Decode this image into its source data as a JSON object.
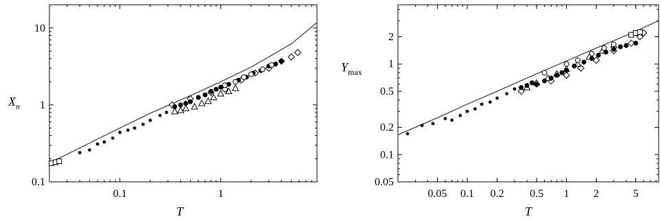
{
  "chart_data": [
    {
      "type": "scatter",
      "title": "",
      "xlabel": "T",
      "ylabel": "X",
      "ylabel_sub": "n",
      "xscale": "log",
      "yscale": "log",
      "xlim": [
        0.02,
        9
      ],
      "ylim": [
        0.1,
        20
      ],
      "xticks": [
        {
          "v": 0.1,
          "label": "0.1"
        },
        {
          "v": 1,
          "label": "1"
        }
      ],
      "yticks": [
        {
          "v": 0.1,
          "label": "0.1"
        },
        {
          "v": 1,
          "label": "1"
        },
        {
          "v": 10,
          "label": "10"
        }
      ],
      "grid": false,
      "curve": {
        "x": [
          0.02,
          0.05,
          0.1,
          0.2,
          0.5,
          1,
          2,
          5,
          9
        ],
        "y": [
          0.175,
          0.32,
          0.5,
          0.78,
          1.32,
          2.0,
          3.1,
          6.2,
          11.8
        ]
      },
      "series": [
        {
          "marker": "star",
          "x": [
            0.04,
            0.05,
            0.06,
            0.07,
            0.085,
            0.1,
            0.12,
            0.14,
            0.17,
            0.2,
            0.25,
            0.29
          ],
          "y": [
            0.24,
            0.26,
            0.31,
            0.33,
            0.37,
            0.44,
            0.47,
            0.5,
            0.56,
            0.63,
            0.73,
            0.8
          ]
        },
        {
          "marker": "open-square",
          "x": [
            0.021,
            0.023,
            0.025
          ],
          "y": [
            0.175,
            0.18,
            0.185
          ]
        },
        {
          "marker": "open-diamond",
          "x": [
            0.33,
            0.5,
            0.8,
            1.1,
            1.6,
            2.2,
            3.0,
            4.0,
            5.0,
            5.8
          ],
          "y": [
            1.0,
            1.2,
            1.45,
            1.6,
            2.1,
            2.6,
            3.0,
            3.7,
            4.2,
            4.8
          ]
        },
        {
          "marker": "open-triangle",
          "x": [
            0.35,
            0.4,
            0.45,
            0.55,
            0.65,
            0.75,
            0.85,
            1.0,
            1.2,
            1.4
          ],
          "y": [
            0.82,
            0.85,
            0.9,
            0.95,
            1.05,
            1.12,
            1.25,
            1.4,
            1.5,
            1.65
          ]
        },
        {
          "marker": "filled-circle",
          "x": [
            0.35,
            0.4,
            0.45,
            0.5,
            0.6,
            0.7,
            0.8,
            0.9,
            1.0,
            1.2,
            1.5,
            1.8,
            2.1,
            2.5,
            3.0,
            3.5,
            4.0
          ],
          "y": [
            0.95,
            1.0,
            1.05,
            1.1,
            1.25,
            1.35,
            1.5,
            1.6,
            1.7,
            1.85,
            2.1,
            2.3,
            2.6,
            2.8,
            3.2,
            3.4,
            3.7
          ]
        },
        {
          "marker": "open-circle",
          "x": [
            1.1,
            1.4,
            1.7,
            2.0,
            2.6,
            3.2
          ],
          "y": [
            1.8,
            2.0,
            2.3,
            2.5,
            2.9,
            3.3
          ]
        }
      ]
    },
    {
      "type": "scatter",
      "title": "",
      "xlabel": "T",
      "ylabel": "Y",
      "ylabel_sub": "max",
      "xscale": "log",
      "yscale": "log",
      "xlim": [
        0.02,
        8.5
      ],
      "ylim": [
        0.05,
        4.5
      ],
      "xticks": [
        {
          "v": 0.05,
          "label": "0.05"
        },
        {
          "v": 0.1,
          "label": "0.1"
        },
        {
          "v": 0.2,
          "label": "0.2"
        },
        {
          "v": 0.5,
          "label": "0.5"
        },
        {
          "v": 1,
          "label": "1"
        },
        {
          "v": 2,
          "label": "2"
        },
        {
          "v": 5,
          "label": "5"
        }
      ],
      "yticks": [
        {
          "v": 0.05,
          "label": "0.05"
        },
        {
          "v": 0.1,
          "label": "0.1"
        },
        {
          "v": 0.2,
          "label": "0.2"
        },
        {
          "v": 0.5,
          "label": "0.5"
        },
        {
          "v": 1,
          "label": "1"
        },
        {
          "v": 2,
          "label": "2"
        }
      ],
      "grid": false,
      "curve": {
        "x": [
          0.02,
          0.05,
          0.1,
          0.2,
          0.5,
          1,
          2,
          5,
          8.5
        ],
        "y": [
          0.165,
          0.255,
          0.36,
          0.5,
          0.78,
          1.08,
          1.5,
          2.3,
          3.0
        ]
      },
      "series": [
        {
          "marker": "star",
          "x": [
            0.025,
            0.035,
            0.045,
            0.06,
            0.07,
            0.085,
            0.1,
            0.12,
            0.14,
            0.17,
            0.2,
            0.25,
            0.3
          ],
          "y": [
            0.17,
            0.21,
            0.22,
            0.25,
            0.24,
            0.27,
            0.3,
            0.32,
            0.36,
            0.38,
            0.42,
            0.47,
            0.53
          ]
        },
        {
          "marker": "open-diamond",
          "x": [
            0.35,
            0.5,
            0.7,
            1.0,
            1.4,
            2.0,
            3.0,
            4.5,
            5.5,
            6.0
          ],
          "y": [
            0.5,
            0.6,
            0.65,
            0.75,
            0.9,
            1.1,
            1.4,
            1.7,
            2.0,
            2.2
          ]
        },
        {
          "marker": "open-triangle",
          "x": [
            0.4,
            0.5,
            0.65,
            0.8,
            1.0,
            1.3,
            1.7,
            2.3,
            3.0
          ],
          "y": [
            0.55,
            0.62,
            0.7,
            0.78,
            0.88,
            1.0,
            1.2,
            1.4,
            1.6
          ]
        },
        {
          "marker": "filled-circle",
          "x": [
            0.35,
            0.4,
            0.45,
            0.5,
            0.6,
            0.7,
            0.8,
            0.9,
            1.0,
            1.2,
            1.5,
            1.8,
            2.1,
            2.5,
            3.0,
            3.5,
            4.0,
            5.0
          ],
          "y": [
            0.55,
            0.58,
            0.62,
            0.6,
            0.65,
            0.7,
            0.75,
            0.8,
            0.85,
            0.95,
            1.05,
            1.15,
            1.25,
            1.35,
            1.45,
            1.55,
            1.6,
            1.7
          ]
        },
        {
          "marker": "open-circle",
          "x": [
            0.6,
            1.0,
            1.3,
            1.8,
            2.4,
            3.0
          ],
          "y": [
            0.8,
            1.0,
            1.1,
            1.3,
            1.5,
            1.65
          ]
        },
        {
          "marker": "open-square",
          "x": [
            4.5,
            5.0,
            5.5
          ],
          "y": [
            2.1,
            2.2,
            2.25
          ]
        }
      ]
    }
  ]
}
